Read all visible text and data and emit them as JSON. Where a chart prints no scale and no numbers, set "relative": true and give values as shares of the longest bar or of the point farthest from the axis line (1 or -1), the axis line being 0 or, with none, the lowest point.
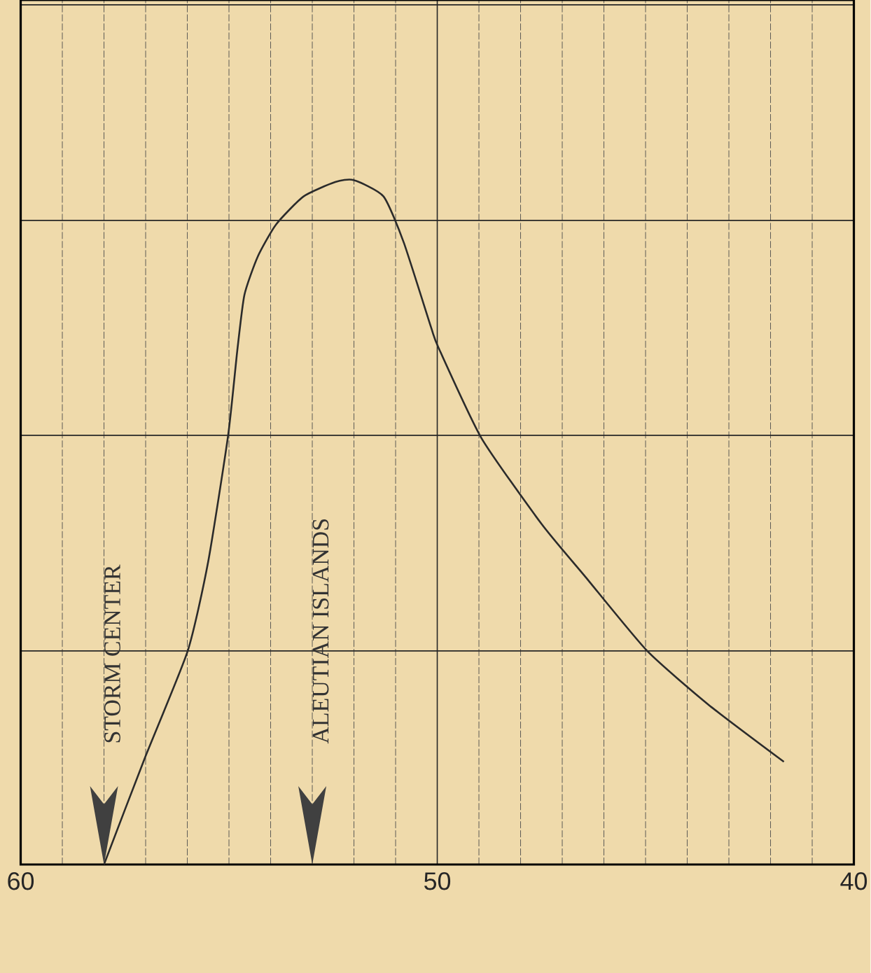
{
  "chart_data": {
    "type": "line",
    "relative": true,
    "grid": true,
    "xlim": [
      60,
      40
    ],
    "xticks": [
      60,
      50,
      40
    ],
    "series": [
      {
        "color": "#2b2b2b",
        "x": [
          58.0,
          57.03,
          55.99,
          55.5,
          55.02,
          54.8,
          54.63,
          54.31,
          53.87,
          53.21,
          52.45,
          52.01,
          51.29,
          50.8,
          50.15,
          49.97,
          48.94,
          47.49,
          46.44,
          44.96,
          43.46,
          41.68
        ],
        "values": [
          0,
          0.154,
          0.312,
          0.442,
          0.627,
          0.751,
          0.832,
          0.888,
          0.935,
          0.976,
          0.997,
          1.0,
          0.976,
          0.908,
          0.785,
          0.755,
          0.623,
          0.497,
          0.42,
          0.312,
          0.232,
          0.15
        ]
      }
    ],
    "annotations": [
      "STORM CENTER",
      "ALEUTIAN ISLANDS"
    ]
  }
}
